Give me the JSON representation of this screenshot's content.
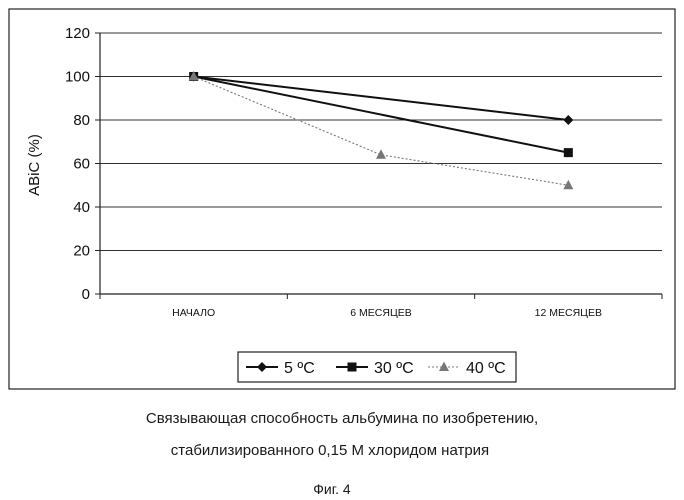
{
  "chart_data": {
    "type": "line",
    "categories": [
      "НАЧАЛО",
      "6 МЕСЯЦЕВ",
      "12 МЕСЯЦЕВ"
    ],
    "ylabel": "ABiC (%)",
    "xlabel": "",
    "ylim": [
      0,
      120
    ],
    "yticks": [
      0,
      20,
      40,
      60,
      80,
      100,
      120
    ],
    "grid": true,
    "legend_position": "bottom-right",
    "series": [
      {
        "name": "5 ºC",
        "values": [
          100,
          null,
          80
        ],
        "marker": "diamond",
        "color": "#111111",
        "style": "solid"
      },
      {
        "name": "30 ºC",
        "values": [
          100,
          null,
          65
        ],
        "marker": "square",
        "color": "#111111",
        "style": "solid"
      },
      {
        "name": "40 ºC",
        "values": [
          100,
          64,
          50
        ],
        "marker": "triangle",
        "color": "#777777",
        "style": "dotted"
      }
    ]
  },
  "caption": {
    "line1": "Связывающая способность альбумина по изобретению,",
    "line2": "стабилизированного 0,15 М хлоридом натрия",
    "figure_label": "Фиг. 4"
  }
}
